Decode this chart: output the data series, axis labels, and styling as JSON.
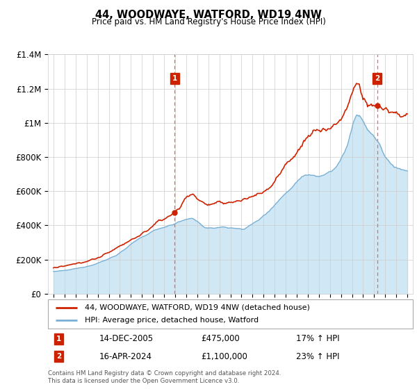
{
  "title": "44, WOODWAYE, WATFORD, WD19 4NW",
  "subtitle": "Price paid vs. HM Land Registry's House Price Index (HPI)",
  "legend_line1": "44, WOODWAYE, WATFORD, WD19 4NW (detached house)",
  "legend_line2": "HPI: Average price, detached house, Watford",
  "annotation1_date": "14-DEC-2005",
  "annotation1_price": "£475,000",
  "annotation1_hpi": "17% ↑ HPI",
  "annotation2_date": "16-APR-2024",
  "annotation2_price": "£1,100,000",
  "annotation2_hpi": "23% ↑ HPI",
  "footer": "Contains HM Land Registry data © Crown copyright and database right 2024.\nThis data is licensed under the Open Government Licence v3.0.",
  "red_color": "#cc2200",
  "blue_color": "#7ab0d4",
  "blue_fill": "#d0e8f5",
  "dashed_red": "#ee6655",
  "annotation_box_color": "#cc2200",
  "background_color": "#ffffff",
  "grid_color": "#cccccc",
  "ylim_min": 0,
  "ylim_max": 1400000,
  "sale1_year": 2005.96,
  "sale1_value": 475000,
  "sale2_year": 2024.29,
  "sale2_value": 1100000
}
